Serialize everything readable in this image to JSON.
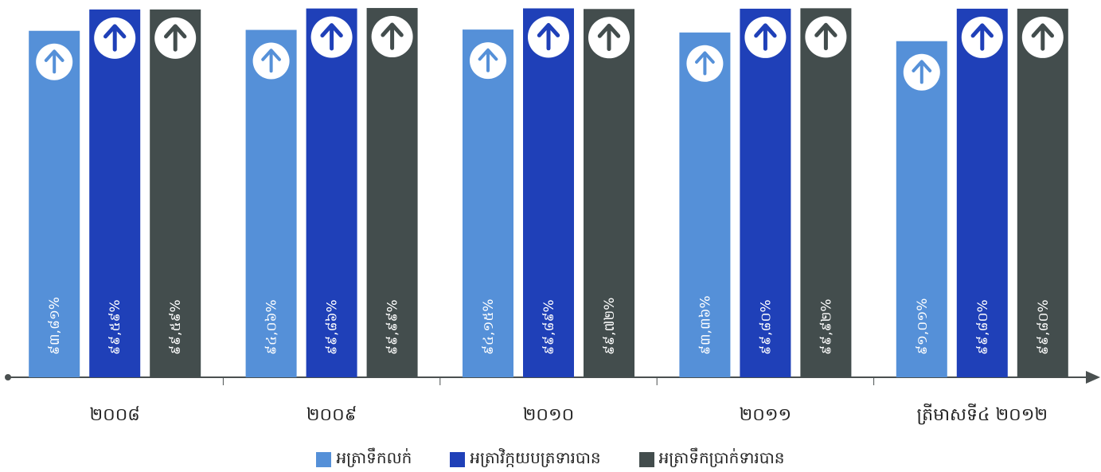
{
  "chart_data": {
    "type": "bar",
    "categories": [
      "២០០៨",
      "២០០៩",
      "២០១០",
      "២០១១",
      "ត្រីមាសទី៤ ២០១២"
    ],
    "series": [
      {
        "name": "អត្រាទឹកលក់",
        "color": "#5590d8",
        "values": [
          93.81,
          94.06,
          94.15,
          93.36,
          91.01
        ],
        "labels": [
          "៩៣,៨១%",
          "៩៤,០៦%",
          "៩៤,១៥%",
          "៩៣,៣៦%",
          "៩១,០១%"
        ]
      },
      {
        "name": "អត្រាវិក្កយបត្រទារបាន",
        "color": "#1f40b8",
        "values": [
          99.59,
          99.86,
          99.89,
          99.8,
          99.8
        ],
        "labels": [
          "៩៩,៥៩%",
          "៩៩,៨៦%",
          "៩៩,៨៩%",
          "៩៩,៨០%",
          "៩៩,៨០%"
        ]
      },
      {
        "name": "អត្រាទឹកប្រាក់ទារបាន",
        "color": "#434d4d",
        "values": [
          99.59,
          99.99,
          99.72,
          99.92,
          99.8
        ],
        "labels": [
          "៩៩,៥៩%",
          "៩៩,៩៩%",
          "៩៩,៧២%",
          "៩៩,៩២%",
          "៩៩,៨០%"
        ]
      }
    ],
    "ylim": [
      0,
      100
    ],
    "grid": false,
    "legend": "bottom",
    "icon": "arrow-up-circle-icon",
    "axis_color": "#4a5050"
  }
}
